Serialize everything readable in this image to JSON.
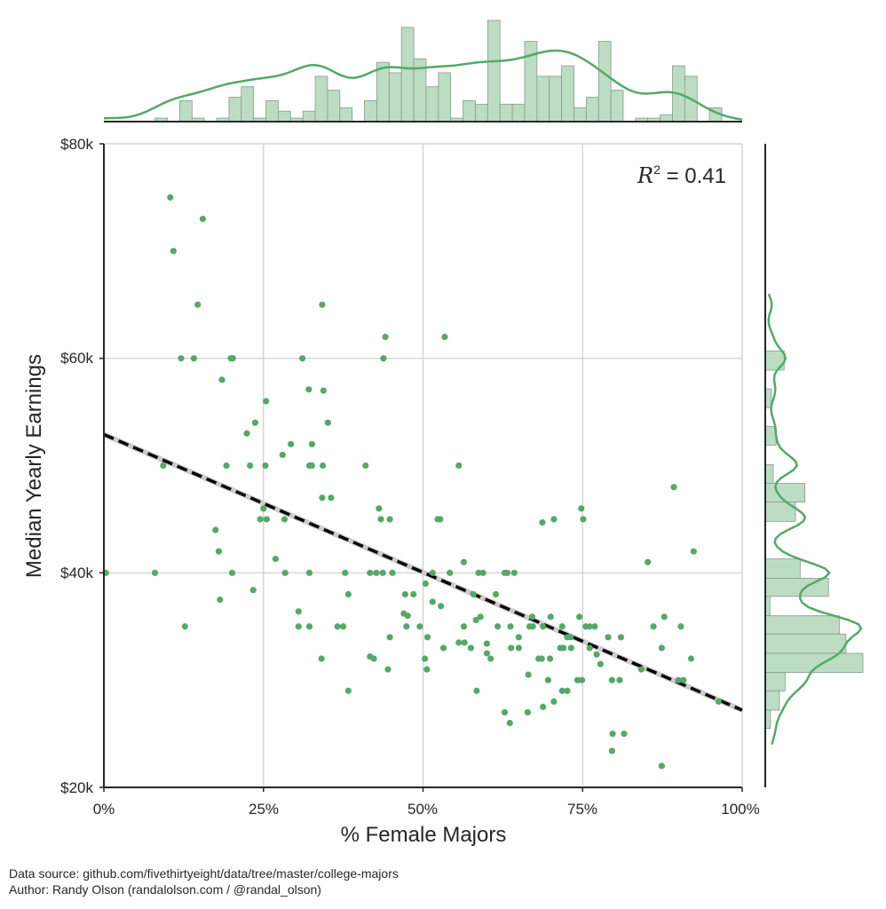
{
  "colors": {
    "point": "#55a868",
    "hist_fill": "#bcdcc3",
    "hist_edge": "#8a9a8d",
    "kde": "#55a868",
    "grid": "#cccccc",
    "fit": "#000000"
  },
  "chart_data": {
    "type": "scatter",
    "xlabel": "% Female Majors",
    "ylabel": "Median Yearly Earnings",
    "xlim": [
      0,
      100
    ],
    "ylim": [
      20000,
      80000
    ],
    "x_ticks": [
      "0%",
      "25%",
      "50%",
      "75%",
      "100%"
    ],
    "y_ticks": [
      "$20k",
      "$40k",
      "$60k",
      "$80k"
    ],
    "grid": true,
    "annotation": {
      "r2_label": "R",
      "r2_sup": "2",
      "r2_value": "= 0.41"
    },
    "regression": {
      "intercept": 52900,
      "slope_per_percent": -257,
      "style": "dashed"
    },
    "points": [
      [
        10.4,
        75
      ],
      [
        15.5,
        73
      ],
      [
        10.9,
        70
      ],
      [
        14.7,
        65
      ],
      [
        34.2,
        65
      ],
      [
        44.1,
        62
      ],
      [
        12.1,
        60
      ],
      [
        14.1,
        60
      ],
      [
        19.9,
        60
      ],
      [
        20.2,
        60
      ],
      [
        31.1,
        60
      ],
      [
        43.8,
        60
      ],
      [
        18.5,
        58
      ],
      [
        32.1,
        57.1
      ],
      [
        34.4,
        57
      ],
      [
        25.4,
        56
      ],
      [
        23.7,
        54
      ],
      [
        35.1,
        54
      ],
      [
        22.4,
        53
      ],
      [
        29.3,
        52
      ],
      [
        32.6,
        52
      ],
      [
        28.0,
        51
      ],
      [
        9.3,
        50
      ],
      [
        19.2,
        50
      ],
      [
        22.9,
        50
      ],
      [
        25.3,
        50
      ],
      [
        32.2,
        50
      ],
      [
        32.6,
        50
      ],
      [
        34.3,
        50
      ],
      [
        41.0,
        50
      ],
      [
        53.4,
        62
      ],
      [
        55.6,
        50
      ],
      [
        34.2,
        47
      ],
      [
        35.6,
        47
      ],
      [
        25.0,
        46
      ],
      [
        43.1,
        46
      ],
      [
        24.5,
        45
      ],
      [
        25.5,
        45
      ],
      [
        28.3,
        45
      ],
      [
        43.4,
        45
      ],
      [
        44.8,
        45
      ],
      [
        17.5,
        44
      ],
      [
        18.0,
        42
      ],
      [
        26.9,
        41.3
      ],
      [
        0.3,
        40
      ],
      [
        8.0,
        40
      ],
      [
        20.1,
        40
      ],
      [
        28.4,
        40
      ],
      [
        32.2,
        40
      ],
      [
        37.8,
        40
      ],
      [
        41.7,
        40
      ],
      [
        42.7,
        40
      ],
      [
        43.7,
        40
      ],
      [
        45.2,
        40
      ],
      [
        23.4,
        38.4
      ],
      [
        38.3,
        38
      ],
      [
        47.2,
        38
      ],
      [
        48.5,
        38
      ],
      [
        18.2,
        37.5
      ],
      [
        30.5,
        36.4
      ],
      [
        47.0,
        36.2
      ],
      [
        47.6,
        36
      ],
      [
        12.7,
        35
      ],
      [
        30.5,
        35
      ],
      [
        32.2,
        35
      ],
      [
        36.6,
        35
      ],
      [
        37.5,
        35
      ],
      [
        47.4,
        35
      ],
      [
        49.5,
        35
      ],
      [
        44.8,
        34
      ],
      [
        34.1,
        32
      ],
      [
        41.7,
        32.2
      ],
      [
        42.3,
        32
      ],
      [
        44.5,
        31
      ],
      [
        38.3,
        29
      ],
      [
        89.3,
        48
      ],
      [
        74.8,
        46
      ],
      [
        75.1,
        45
      ],
      [
        68.7,
        44.7
      ],
      [
        70.5,
        45
      ],
      [
        52.3,
        45
      ],
      [
        52.7,
        45
      ],
      [
        92.4,
        42
      ],
      [
        85.2,
        41
      ],
      [
        56.4,
        41
      ],
      [
        51.5,
        40
      ],
      [
        54.2,
        40
      ],
      [
        58.7,
        40
      ],
      [
        59.4,
        40
      ],
      [
        62.8,
        40
      ],
      [
        63.2,
        40
      ],
      [
        64.3,
        40
      ],
      [
        50.4,
        39
      ],
      [
        57.9,
        38
      ],
      [
        61.4,
        38
      ],
      [
        51.5,
        37.3
      ],
      [
        52.8,
        36.9
      ],
      [
        58.3,
        35.6
      ],
      [
        59.0,
        35.9
      ],
      [
        67.1,
        35.9
      ],
      [
        70.0,
        35.9
      ],
      [
        74.5,
        35.9
      ],
      [
        87.8,
        35.9
      ],
      [
        56.4,
        35
      ],
      [
        61.7,
        35
      ],
      [
        63.7,
        35
      ],
      [
        66.7,
        35
      ],
      [
        67.2,
        35
      ],
      [
        68.8,
        35
      ],
      [
        71.8,
        35
      ],
      [
        75.5,
        35
      ],
      [
        76.1,
        35
      ],
      [
        76.9,
        35
      ],
      [
        86.1,
        35
      ],
      [
        90.4,
        35
      ],
      [
        50.7,
        34
      ],
      [
        65.0,
        34
      ],
      [
        72.6,
        34
      ],
      [
        73.1,
        34
      ],
      [
        79.0,
        34
      ],
      [
        81.0,
        34
      ],
      [
        55.6,
        33.5
      ],
      [
        56.5,
        33.5
      ],
      [
        60.0,
        33.4
      ],
      [
        53.2,
        33
      ],
      [
        57.5,
        33
      ],
      [
        63.8,
        33
      ],
      [
        65.0,
        33
      ],
      [
        71.5,
        33
      ],
      [
        72.0,
        33
      ],
      [
        73.2,
        33
      ],
      [
        76.1,
        33
      ],
      [
        87.4,
        33
      ],
      [
        60.0,
        32.5
      ],
      [
        77.2,
        32.4
      ],
      [
        50.3,
        32
      ],
      [
        60.6,
        32
      ],
      [
        68.1,
        32
      ],
      [
        68.6,
        32
      ],
      [
        69.9,
        32
      ],
      [
        92.0,
        32
      ],
      [
        50.6,
        31
      ],
      [
        77.8,
        31.5
      ],
      [
        84.2,
        31
      ],
      [
        66.5,
        30.5
      ],
      [
        69.6,
        30
      ],
      [
        74.2,
        30
      ],
      [
        74.9,
        30
      ],
      [
        79.6,
        30
      ],
      [
        80.8,
        30
      ],
      [
        90.0,
        30
      ],
      [
        90.8,
        30
      ],
      [
        58.4,
        29
      ],
      [
        71.8,
        29
      ],
      [
        72.6,
        29
      ],
      [
        70.5,
        28
      ],
      [
        68.8,
        27.5
      ],
      [
        96.3,
        28
      ],
      [
        62.8,
        27
      ],
      [
        66.4,
        27
      ],
      [
        63.6,
        26
      ],
      [
        79.7,
        25
      ],
      [
        81.5,
        25
      ],
      [
        79.6,
        23.4
      ],
      [
        87.4,
        22
      ]
    ],
    "point_units": {
      "x": "% female",
      "y": "$k"
    },
    "x_histogram": {
      "range": [
        0.3,
        96.8
      ],
      "heights": [
        0,
        0,
        0,
        0,
        1,
        0,
        6,
        1,
        0,
        1,
        7,
        10,
        1,
        6,
        3,
        1,
        3,
        13,
        9,
        4,
        0,
        6,
        17,
        14,
        27,
        18,
        10,
        14,
        1,
        6,
        5,
        29,
        5,
        5,
        23,
        13,
        13,
        16,
        4,
        7,
        23,
        9,
        0,
        1,
        1,
        2,
        16,
        13,
        0,
        4
      ]
    },
    "y_histogram": {
      "bins_k": [
        [
          58.9,
          60.7
        ],
        [
          55.4,
          57.15
        ],
        [
          51.9,
          53.65
        ],
        [
          48.35,
          50.1
        ],
        [
          46.6,
          48.35
        ],
        [
          44.8,
          46.6
        ],
        [
          39.5,
          41.3
        ],
        [
          37.8,
          39.5
        ],
        [
          36.0,
          37.8
        ],
        [
          34.3,
          36.0
        ],
        [
          32.5,
          34.3
        ],
        [
          30.7,
          32.5
        ],
        [
          29.0,
          30.7
        ],
        [
          27.2,
          29.0
        ],
        [
          25.5,
          27.2
        ]
      ],
      "heights": [
        4.0,
        1.3,
        2.3,
        1.7,
        8.4,
        6.4,
        7.4,
        13.4,
        1.0,
        15.7,
        17.1,
        20.7,
        4.2,
        3.0,
        1.1
      ]
    }
  },
  "footer": {
    "source": "Data source: github.com/fivethirtyeight/data/tree/master/college-majors",
    "author": "Author: Randy Olson (randalolson.com / @randal_olson)"
  }
}
